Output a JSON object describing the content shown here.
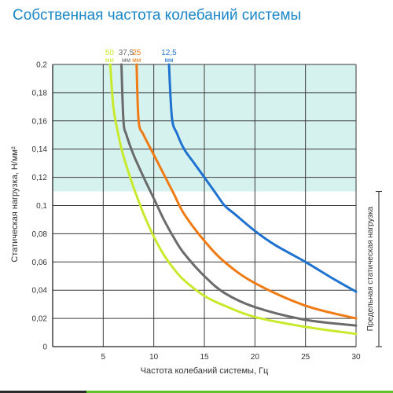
{
  "title": "Собственная частота колебаний системы",
  "chart_data": {
    "type": "line",
    "xlabel": "Частота колебаний системы, Гц",
    "ylabel": "Статическая нагрузка, Н/мм²",
    "xlim": [
      0,
      30
    ],
    "ylim": [
      0,
      0.2
    ],
    "x_ticks": [
      5,
      10,
      15,
      20,
      25,
      30
    ],
    "y_ticks": [
      0,
      0.02,
      0.04,
      0.06,
      0.08,
      0.1,
      0.12,
      0.14,
      0.16,
      0.18,
      0.2
    ],
    "x_tick_labels": [
      "5",
      "10",
      "15",
      "20",
      "25",
      "30"
    ],
    "y_tick_labels": [
      "0",
      "0,02",
      "0,04",
      "0,06",
      "0,08",
      "0,1",
      "0,12",
      "0,14",
      "0,16",
      "0,18",
      "0,2"
    ],
    "grid": true,
    "shaded_region": {
      "y_from": 0.11,
      "y_to": 0.2,
      "color": "#d6f2ef"
    },
    "bracket_label": "Предельная статическая нагрузка",
    "bracket_range": [
      0,
      0.11
    ],
    "series": [
      {
        "name": "50",
        "unit": "мм",
        "color": "#c8ea2c",
        "x": [
          5.7,
          6.0,
          6.5,
          7.0,
          8.0,
          9.0,
          10.0,
          11.0,
          12.0,
          13.0,
          15.0,
          17.0,
          20.0,
          25.0,
          30.0
        ],
        "y": [
          0.2,
          0.17,
          0.15,
          0.135,
          0.113,
          0.094,
          0.078,
          0.065,
          0.055,
          0.047,
          0.036,
          0.029,
          0.021,
          0.014,
          0.009
        ]
      },
      {
        "name": "37,5",
        "unit": "мм",
        "color": "#6b6b6b",
        "x": [
          6.8,
          7.0,
          7.3,
          8.0,
          9.0,
          10.0,
          11.0,
          12.0,
          13.0,
          15.0,
          17.0,
          20.0,
          25.0,
          30.0
        ],
        "y": [
          0.2,
          0.16,
          0.15,
          0.136,
          0.12,
          0.105,
          0.09,
          0.077,
          0.066,
          0.05,
          0.038,
          0.028,
          0.019,
          0.015
        ]
      },
      {
        "name": "25",
        "unit": "мм",
        "color": "#f07b14",
        "x": [
          8.3,
          8.5,
          9.0,
          10.0,
          11.0,
          12.0,
          13.0,
          15.0,
          17.0,
          20.0,
          25.0,
          30.0
        ],
        "y": [
          0.2,
          0.16,
          0.15,
          0.136,
          0.122,
          0.108,
          0.094,
          0.075,
          0.06,
          0.045,
          0.029,
          0.02
        ]
      },
      {
        "name": "12,5",
        "unit": "мм",
        "color": "#1f73cf",
        "x": [
          11.5,
          11.8,
          12.3,
          13.0,
          14.0,
          15.0,
          16.0,
          17.0,
          18.0,
          20.0,
          22.0,
          25.0,
          28.0,
          30.0
        ],
        "y": [
          0.2,
          0.162,
          0.151,
          0.14,
          0.13,
          0.12,
          0.11,
          0.1,
          0.094,
          0.082,
          0.072,
          0.06,
          0.047,
          0.039
        ]
      }
    ]
  }
}
